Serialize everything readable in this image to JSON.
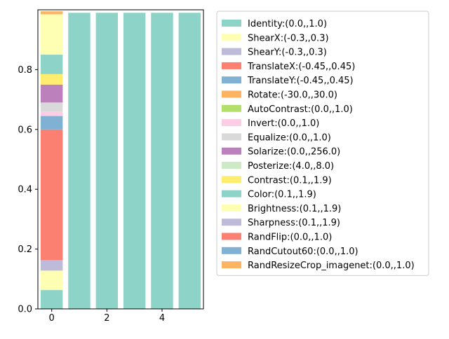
{
  "chart_data": {
    "type": "bar",
    "stacked": true,
    "categories": [
      0,
      1,
      2,
      3,
      4,
      5
    ],
    "xlim": [
      -0.5,
      5.5
    ],
    "ylim": [
      0,
      1.0
    ],
    "xticks": [
      0,
      2,
      4
    ],
    "yticks": [
      0.0,
      0.2,
      0.4,
      0.6,
      0.8
    ],
    "grid": false,
    "legend_position": "right, outside plot, upper",
    "series": [
      {
        "name": "Identity:(0.0,,1.0)",
        "color": "#8dd3c7",
        "values": [
          0.063,
          0.99,
          0.99,
          0.99,
          0.99,
          0.99
        ]
      },
      {
        "name": "ShearX:(-0.3,,0.3)",
        "color": "#ffffb3",
        "values": [
          0.065,
          0.0,
          0.0,
          0.0,
          0.0,
          0.0
        ]
      },
      {
        "name": "ShearY:(-0.3,,0.3)",
        "color": "#bebada",
        "values": [
          0.035,
          0.0,
          0.0,
          0.0,
          0.0,
          0.0
        ]
      },
      {
        "name": "TranslateX:(-0.45,,0.45)",
        "color": "#fb8072",
        "values": [
          0.437,
          0.0,
          0.0,
          0.0,
          0.0,
          0.0
        ]
      },
      {
        "name": "TranslateY:(-0.45,,0.45)",
        "color": "#80b1d3",
        "values": [
          0.045,
          0.0,
          0.0,
          0.0,
          0.0,
          0.0
        ]
      },
      {
        "name": "Rotate:(-30.0,,30.0)",
        "color": "#fdb462",
        "values": [
          0.0,
          0.0,
          0.0,
          0.0,
          0.0,
          0.0
        ]
      },
      {
        "name": "AutoContrast:(0.0,,1.0)",
        "color": "#b3de69",
        "values": [
          0.0,
          0.0,
          0.0,
          0.0,
          0.0,
          0.0
        ]
      },
      {
        "name": "Invert:(0.0,,1.0)",
        "color": "#fccde5",
        "values": [
          0.015,
          0.0,
          0.0,
          0.0,
          0.0,
          0.0
        ]
      },
      {
        "name": "Equalize:(0.0,,1.0)",
        "color": "#d9d9d9",
        "values": [
          0.03,
          0.0,
          0.0,
          0.0,
          0.0,
          0.0
        ]
      },
      {
        "name": "Solarize:(0.0,,256.0)",
        "color": "#bc80bd",
        "values": [
          0.06,
          0.0,
          0.0,
          0.0,
          0.0,
          0.0
        ]
      },
      {
        "name": "Posterize:(4.0,,8.0)",
        "color": "#ccebc5",
        "values": [
          0.0,
          0.0,
          0.0,
          0.0,
          0.0,
          0.0
        ]
      },
      {
        "name": "Contrast:(0.1,,1.9)",
        "color": "#ffed6f",
        "values": [
          0.035,
          0.0,
          0.0,
          0.0,
          0.0,
          0.0
        ]
      },
      {
        "name": "Color:(0.1,,1.9)",
        "color": "#8dd3c7",
        "values": [
          0.065,
          0.0,
          0.0,
          0.0,
          0.0,
          0.0
        ]
      },
      {
        "name": "Brightness:(0.1,,1.9)",
        "color": "#ffffb3",
        "values": [
          0.135,
          0.0,
          0.0,
          0.0,
          0.0,
          0.0
        ]
      },
      {
        "name": "Sharpness:(0.1,,1.9)",
        "color": "#bebada",
        "values": [
          0.0,
          0.0,
          0.0,
          0.0,
          0.0,
          0.0
        ]
      },
      {
        "name": "RandFlip:(0.0,,1.0)",
        "color": "#fb8072",
        "values": [
          0.0,
          0.0,
          0.0,
          0.0,
          0.0,
          0.0
        ]
      },
      {
        "name": "RandCutout60:(0.0,,1.0)",
        "color": "#80b1d3",
        "values": [
          0.0,
          0.0,
          0.0,
          0.0,
          0.0,
          0.0
        ]
      },
      {
        "name": "RandResizeCrop_imagenet:(0.0,,1.0)",
        "color": "#fdb462",
        "values": [
          0.01,
          0.0,
          0.0,
          0.0,
          0.0,
          0.0
        ]
      }
    ]
  }
}
